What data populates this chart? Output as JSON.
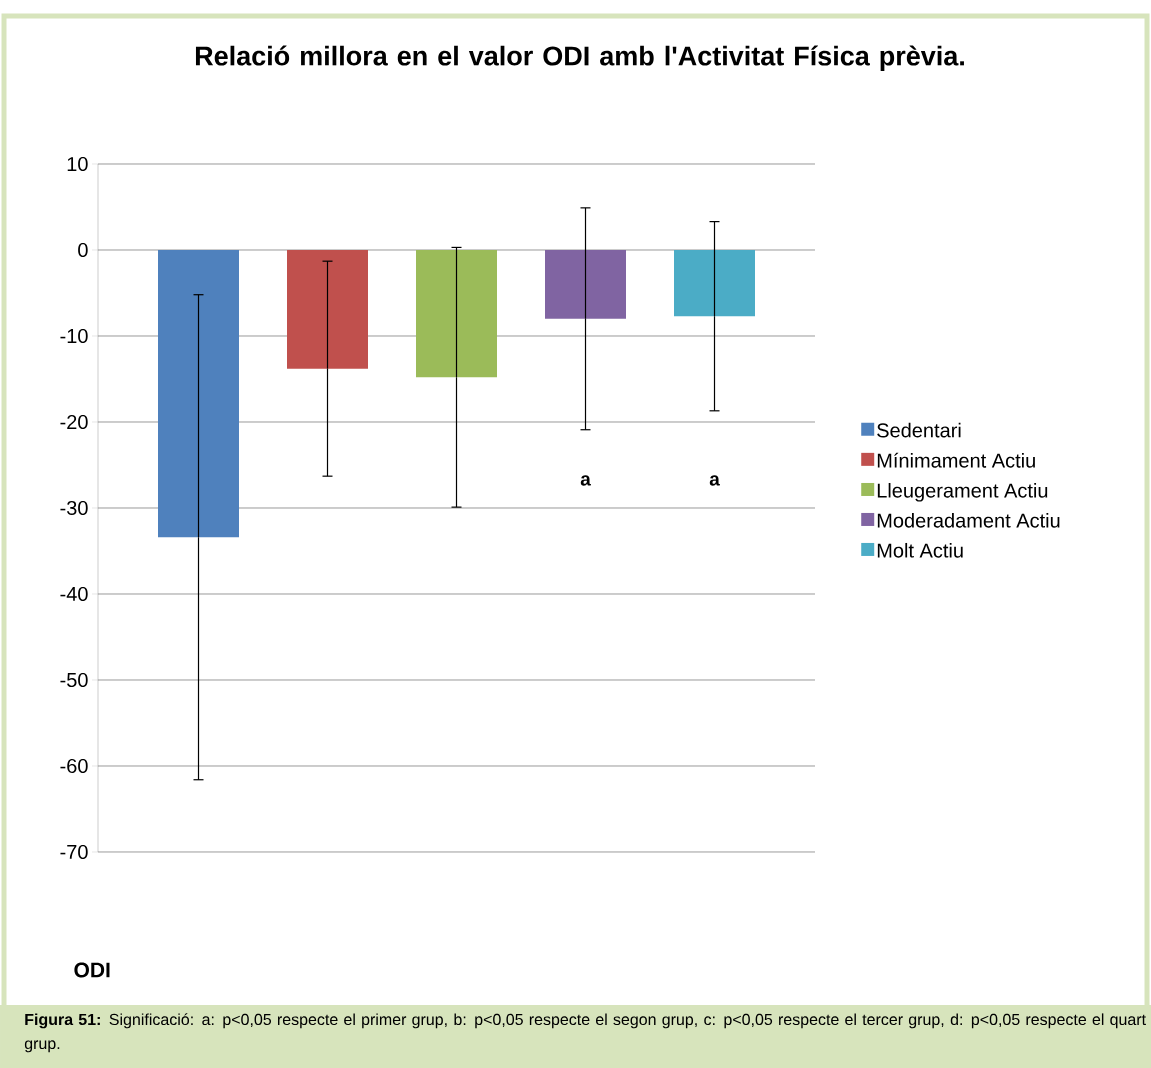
{
  "chart_data": {
    "type": "bar",
    "title": "Relació millora en el valor ODI amb l'Activitat Física prèvia.",
    "xlabel": "ODI",
    "categories": [
      null
    ],
    "series": [
      {
        "name": "Sedentari",
        "color": "#4f81bd",
        "values": [
          -33.4
        ],
        "errors": [
          28.2
        ]
      },
      {
        "name": "Mínimament Actiu",
        "color": "#c0504d",
        "values": [
          -13.8
        ],
        "errors": [
          12.5
        ]
      },
      {
        "name": "Lleugerament Actiu",
        "color": "#9bbb59",
        "values": [
          -14.8
        ],
        "errors": [
          15.1
        ]
      },
      {
        "name": "Moderadament Actiu",
        "color": "#8064a2",
        "values": [
          -8.0
        ],
        "errors": [
          12.9
        ]
      },
      {
        "name": "Molt Actiu",
        "color": "#4bacc6",
        "values": [
          -7.7
        ],
        "errors": [
          11.0
        ]
      }
    ],
    "annotations": [
      "a",
      "a",
      "**Figura 51:** Significació: a: p<0,05 respecte el primer grup, b: p<0,05 respecte el segon grup, c: p<0,05 respecte el tercer grup, d: p<0,05 respecte el quart grup."
    ],
    "ylim": [
      -70,
      10
    ],
    "yticks": [
      -70,
      -60,
      -50,
      -40,
      -30,
      -20,
      -10,
      0,
      10
    ],
    "grid": "y",
    "legend": "right",
    "tick_labels": "y"
  }
}
